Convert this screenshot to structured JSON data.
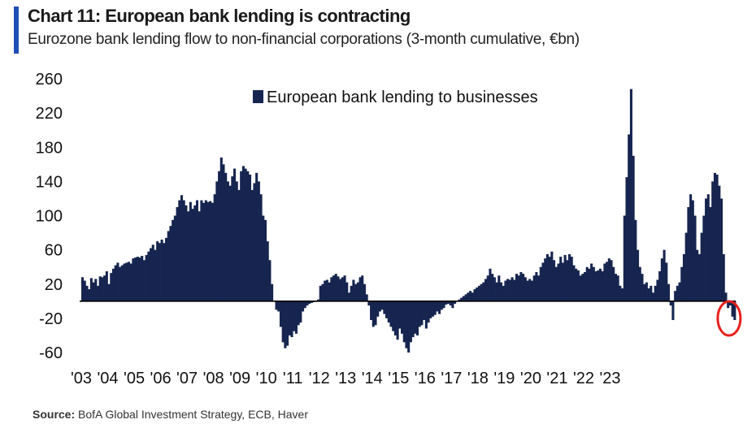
{
  "header": {
    "title": "Chart 11: European bank lending is contracting",
    "subtitle": "Eurozone bank lending flow to non-financial corporations (3-month cumulative, €bn)"
  },
  "footer": {
    "source_label": "Source:",
    "source_text": "BofA Global Investment Strategy, ECB, Haver"
  },
  "colors": {
    "accent": "#1f4fb5",
    "bar": "#16254f",
    "highlight": "#e8201c",
    "axis": "#000000"
  },
  "chart_data": {
    "type": "bar",
    "title": "Chart 11: European bank lending is contracting",
    "subtitle": "Eurozone bank lending flow to non-financial corporations (3-month cumulative, €bn)",
    "xlabel": "",
    "ylabel": "",
    "ylim": [
      -60,
      260
    ],
    "yticks": [
      -60,
      -20,
      20,
      60,
      100,
      140,
      180,
      220,
      260
    ],
    "xticks": [
      "'03",
      "'04",
      "'05",
      "'06",
      "'07",
      "'08",
      "'09",
      "'10",
      "'11",
      "'12",
      "'13",
      "'14",
      "'15",
      "'16",
      "'17",
      "'18",
      "'19",
      "'20",
      "'21",
      "'22",
      "'23"
    ],
    "grid": false,
    "legend_position": "top-center",
    "annotation": "red circle around latest negative readings (2023)",
    "series": [
      {
        "name": "European bank lending to businesses",
        "x_start": "2003-01",
        "frequency": "monthly",
        "values": [
          28,
          24,
          18,
          14,
          27,
          22,
          26,
          18,
          29,
          28,
          30,
          35,
          20,
          33,
          38,
          42,
          45,
          40,
          42,
          44,
          45,
          46,
          44,
          50,
          51,
          52,
          51,
          53,
          48,
          54,
          58,
          62,
          66,
          60,
          70,
          68,
          72,
          68,
          74,
          82,
          88,
          95,
          100,
          110,
          118,
          124,
          118,
          112,
          105,
          116,
          108,
          112,
          118,
          105,
          118,
          115,
          118,
          116,
          117,
          115,
          125,
          140,
          152,
          168,
          160,
          150,
          140,
          135,
          146,
          155,
          140,
          130,
          152,
          158,
          155,
          152,
          148,
          130,
          138,
          150,
          140,
          125,
          100,
          95,
          70,
          48,
          20,
          0,
          -10,
          -12,
          -30,
          -48,
          -55,
          -52,
          -40,
          -42,
          -35,
          -38,
          -28,
          -25,
          -12,
          -8,
          -5,
          -3,
          -2,
          -1,
          0,
          2,
          18,
          20,
          24,
          25,
          22,
          28,
          30,
          32,
          29,
          26,
          28,
          30,
          22,
          10,
          18,
          25,
          20,
          22,
          28,
          30,
          20,
          8,
          -5,
          -22,
          -30,
          -28,
          -18,
          -12,
          -10,
          -15,
          -20,
          -25,
          -30,
          -35,
          -40,
          -45,
          -32,
          -38,
          -48,
          -55,
          -60,
          -48,
          -42,
          -38,
          -40,
          -30,
          -28,
          -22,
          -32,
          -25,
          -20,
          -18,
          -16,
          -12,
          -15,
          -10,
          -8,
          -4,
          -3,
          -5,
          -8,
          -3,
          0,
          2,
          4,
          6,
          8,
          10,
          12,
          10,
          14,
          16,
          18,
          20,
          22,
          26,
          30,
          38,
          32,
          28,
          22,
          30,
          22,
          18,
          24,
          26,
          25,
          28,
          25,
          32,
          30,
          34,
          32,
          28,
          24,
          26,
          24,
          30,
          34,
          30,
          40,
          45,
          50,
          55,
          52,
          58,
          48,
          40,
          44,
          52,
          45,
          54,
          48,
          55,
          52,
          42,
          38,
          36,
          30,
          32,
          34,
          40,
          38,
          44,
          40,
          35,
          36,
          38,
          35,
          44,
          46,
          50,
          48,
          40,
          32,
          30,
          18,
          15,
          100,
          145,
          195,
          248,
          170,
          95,
          60,
          40,
          32,
          20,
          22,
          15,
          18,
          10,
          18,
          25,
          35,
          50,
          60,
          45,
          20,
          -5,
          -22,
          12,
          18,
          22,
          40,
          55,
          80,
          110,
          125,
          118,
          100,
          60,
          55,
          80,
          100,
          120,
          125,
          110,
          140,
          150,
          148,
          135,
          120,
          55,
          10,
          -8,
          -5,
          -18,
          -22
        ]
      }
    ]
  }
}
